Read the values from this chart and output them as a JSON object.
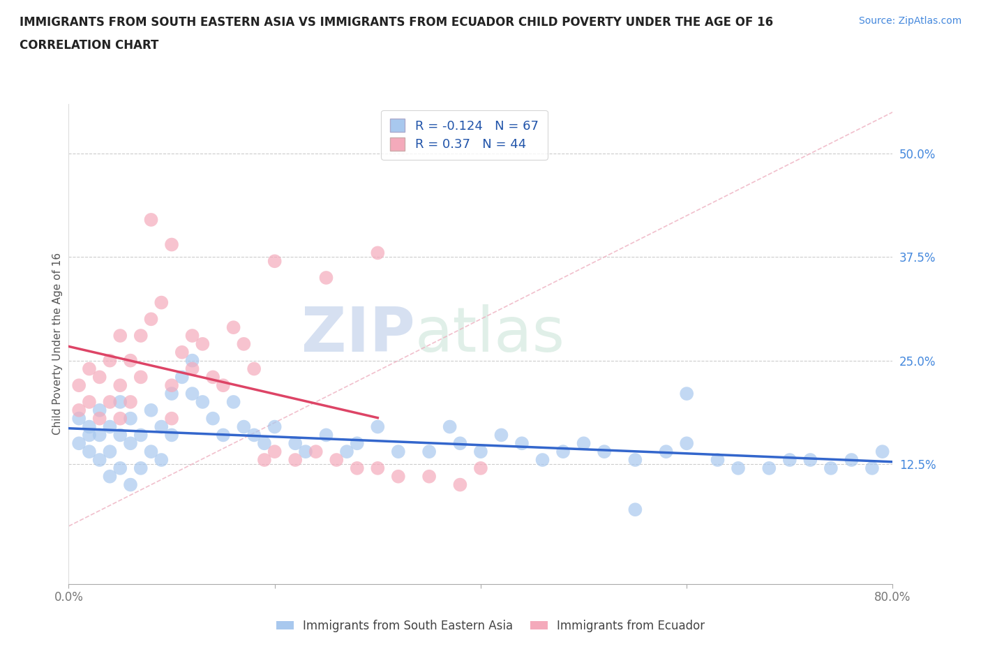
{
  "title_line1": "IMMIGRANTS FROM SOUTH EASTERN ASIA VS IMMIGRANTS FROM ECUADOR CHILD POVERTY UNDER THE AGE OF 16",
  "title_line2": "CORRELATION CHART",
  "source_text": "Source: ZipAtlas.com",
  "ylabel": "Child Poverty Under the Age of 16",
  "xlim": [
    0.0,
    0.8
  ],
  "ylim": [
    -0.02,
    0.56
  ],
  "plot_ylim": [
    -0.02,
    0.56
  ],
  "yticks": [
    0.125,
    0.25,
    0.375,
    0.5
  ],
  "ytick_labels": [
    "12.5%",
    "25.0%",
    "37.5%",
    "50.0%"
  ],
  "xticks": [
    0.0,
    0.2,
    0.4,
    0.6,
    0.8
  ],
  "xtick_labels": [
    "0.0%",
    "",
    "",
    "",
    "80.0%"
  ],
  "blue_R": -0.124,
  "blue_N": 67,
  "pink_R": 0.37,
  "pink_N": 44,
  "blue_color": "#A8C8EE",
  "pink_color": "#F4AABB",
  "blue_trend_color": "#3366CC",
  "pink_trend_color": "#DD4466",
  "ref_line_color": "#F4AABB",
  "legend_label_blue": "Immigrants from South Eastern Asia",
  "legend_label_pink": "Immigrants from Ecuador",
  "watermark_zip": "ZIP",
  "watermark_atlas": "atlas",
  "background_color": "#FFFFFF",
  "blue_scatter_x": [
    0.01,
    0.01,
    0.02,
    0.02,
    0.02,
    0.03,
    0.03,
    0.03,
    0.04,
    0.04,
    0.04,
    0.05,
    0.05,
    0.05,
    0.06,
    0.06,
    0.06,
    0.07,
    0.07,
    0.08,
    0.08,
    0.09,
    0.09,
    0.1,
    0.1,
    0.11,
    0.12,
    0.12,
    0.13,
    0.14,
    0.15,
    0.16,
    0.17,
    0.18,
    0.19,
    0.2,
    0.22,
    0.23,
    0.25,
    0.27,
    0.28,
    0.3,
    0.32,
    0.35,
    0.37,
    0.38,
    0.4,
    0.42,
    0.44,
    0.46,
    0.48,
    0.5,
    0.52,
    0.55,
    0.58,
    0.6,
    0.63,
    0.65,
    0.68,
    0.7,
    0.72,
    0.74,
    0.76,
    0.78,
    0.79,
    0.6,
    0.55
  ],
  "blue_scatter_y": [
    0.18,
    0.15,
    0.17,
    0.16,
    0.14,
    0.19,
    0.16,
    0.13,
    0.17,
    0.14,
    0.11,
    0.2,
    0.16,
    0.12,
    0.18,
    0.15,
    0.1,
    0.16,
    0.12,
    0.19,
    0.14,
    0.17,
    0.13,
    0.21,
    0.16,
    0.23,
    0.25,
    0.21,
    0.2,
    0.18,
    0.16,
    0.2,
    0.17,
    0.16,
    0.15,
    0.17,
    0.15,
    0.14,
    0.16,
    0.14,
    0.15,
    0.17,
    0.14,
    0.14,
    0.17,
    0.15,
    0.14,
    0.16,
    0.15,
    0.13,
    0.14,
    0.15,
    0.14,
    0.13,
    0.14,
    0.15,
    0.13,
    0.12,
    0.12,
    0.13,
    0.13,
    0.12,
    0.13,
    0.12,
    0.14,
    0.21,
    0.07
  ],
  "pink_scatter_x": [
    0.01,
    0.01,
    0.02,
    0.02,
    0.03,
    0.03,
    0.04,
    0.04,
    0.05,
    0.05,
    0.05,
    0.06,
    0.06,
    0.07,
    0.07,
    0.08,
    0.09,
    0.1,
    0.1,
    0.11,
    0.12,
    0.12,
    0.13,
    0.14,
    0.15,
    0.16,
    0.17,
    0.18,
    0.19,
    0.2,
    0.22,
    0.24,
    0.25,
    0.26,
    0.28,
    0.3,
    0.32,
    0.35,
    0.38,
    0.4,
    0.3,
    0.2,
    0.1,
    0.08
  ],
  "pink_scatter_y": [
    0.22,
    0.19,
    0.24,
    0.2,
    0.23,
    0.18,
    0.25,
    0.2,
    0.28,
    0.22,
    0.18,
    0.25,
    0.2,
    0.28,
    0.23,
    0.3,
    0.32,
    0.22,
    0.18,
    0.26,
    0.28,
    0.24,
    0.27,
    0.23,
    0.22,
    0.29,
    0.27,
    0.24,
    0.13,
    0.14,
    0.13,
    0.14,
    0.35,
    0.13,
    0.12,
    0.12,
    0.11,
    0.11,
    0.1,
    0.12,
    0.38,
    0.37,
    0.39,
    0.42
  ]
}
